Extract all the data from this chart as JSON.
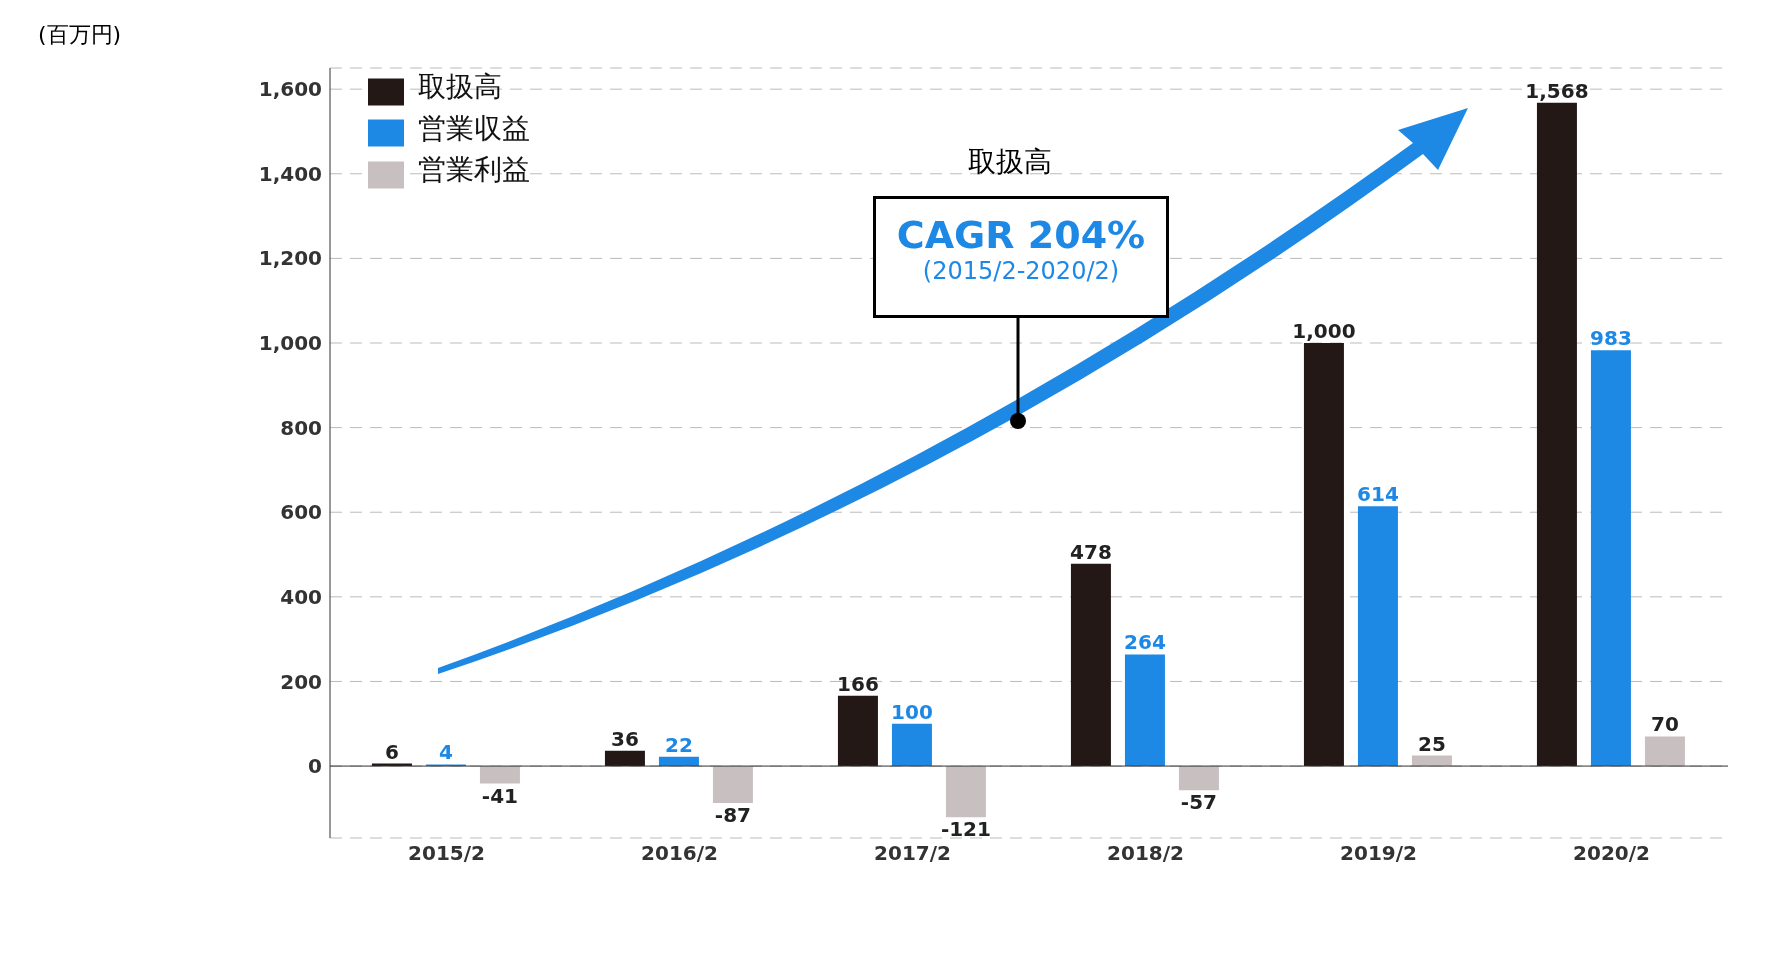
{
  "chart_data": {
    "type": "bar",
    "categories": [
      "2015/2",
      "2016/2",
      "2017/2",
      "2018/2",
      "2019/2",
      "2020/2"
    ],
    "series": [
      {
        "name": "取扱高",
        "color": "#231815",
        "values": [
          6,
          36,
          166,
          478,
          1000,
          1568
        ],
        "value_labels": [
          "6",
          "36",
          "166",
          "478",
          "1,000",
          "1,568"
        ]
      },
      {
        "name": "営業収益",
        "color": "#1e88e5",
        "values": [
          4,
          22,
          100,
          264,
          614,
          983
        ],
        "value_labels": [
          "4",
          "22",
          "100",
          "264",
          "614",
          "983"
        ]
      },
      {
        "name": "営業利益",
        "color": "#c8c0c0",
        "values": [
          -41,
          -87,
          -121,
          -57,
          25,
          70
        ],
        "value_labels": [
          "-41",
          "-87",
          "-121",
          "-57",
          "25",
          "70"
        ]
      }
    ],
    "ylim": [
      -170,
      1650
    ],
    "yticks": [
      0,
      200,
      400,
      600,
      800,
      {
        "value": 1000,
        "label": "1,000"
      },
      {
        "value": 1200,
        "label": "1,200"
      },
      {
        "value": 1400,
        "label": "1,400"
      },
      {
        "value": 1600,
        "label": "1,600"
      }
    ],
    "grid": "y",
    "legend": "top left",
    "annotations": [
      "(百万円)",
      "取扱高",
      "CAGR 204%",
      "(2015/2-2020/2)"
    ]
  }
}
